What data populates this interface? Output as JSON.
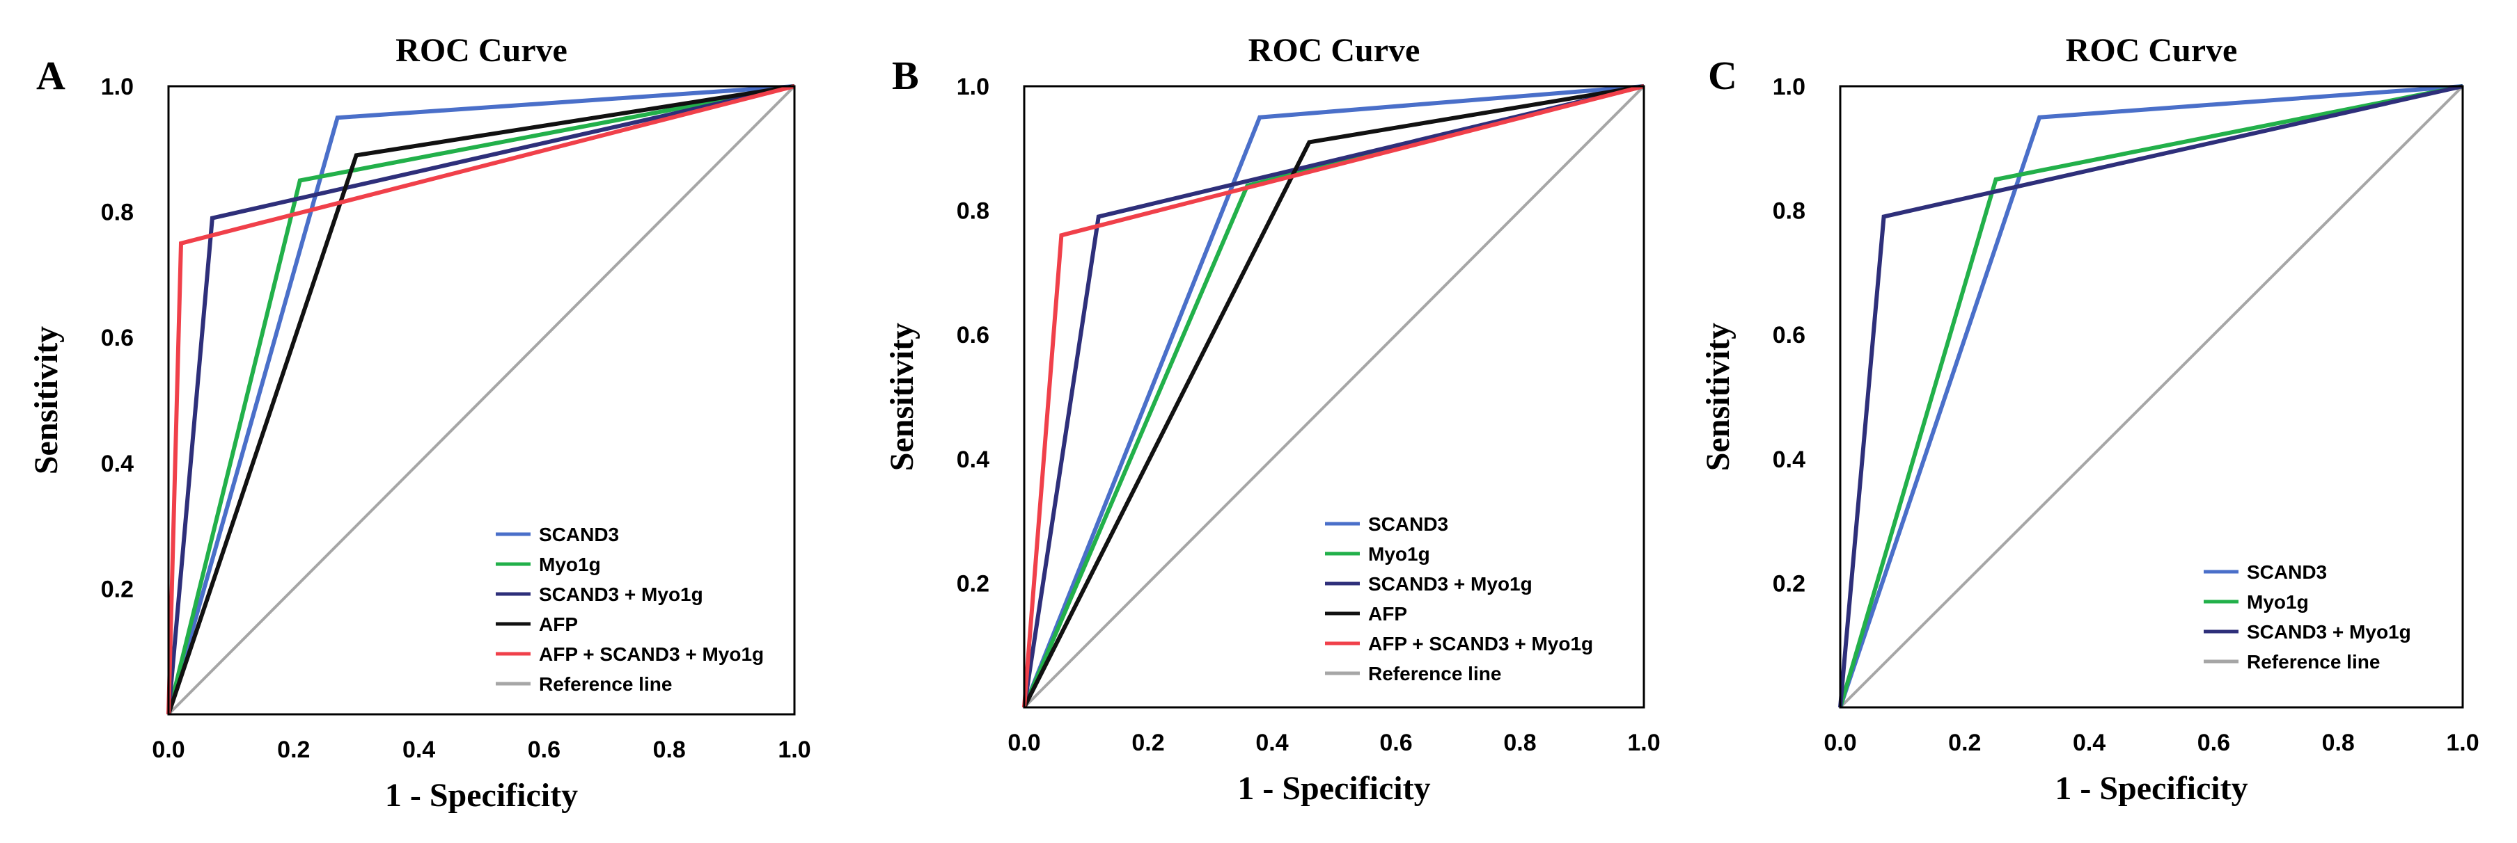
{
  "chart_data": [
    {
      "panel": "A",
      "type": "line",
      "title": "ROC Curve",
      "xlabel": "1 - Specificity",
      "ylabel": "Sensitivity",
      "xlim": [
        0,
        1
      ],
      "ylim": [
        0,
        1
      ],
      "x_ticks": [
        "0.0",
        "0.2",
        "0.4",
        "0.6",
        "0.8",
        "1.0"
      ],
      "y_ticks": [
        "0.2",
        "0.4",
        "0.6",
        "0.8",
        "1.0"
      ],
      "legend_position": "bottom-right",
      "series": [
        {
          "name": "SCAND3",
          "color": "#4a6fc9",
          "x": [
            0,
            0.27,
            1
          ],
          "y": [
            0,
            0.95,
            1
          ]
        },
        {
          "name": "Myo1g",
          "color": "#22b04a",
          "x": [
            0,
            0.21,
            1
          ],
          "y": [
            0,
            0.85,
            1
          ]
        },
        {
          "name": "SCAND3 + Myo1g",
          "color": "#2e2f7a",
          "x": [
            0,
            0.07,
            1
          ],
          "y": [
            0,
            0.79,
            1
          ]
        },
        {
          "name": "AFP",
          "color": "#111111",
          "x": [
            0,
            0.3,
            1
          ],
          "y": [
            0,
            0.89,
            1
          ]
        },
        {
          "name": "AFP + SCAND3 + Myo1g",
          "color": "#f0404a",
          "x": [
            0,
            0.02,
            1
          ],
          "y": [
            0,
            0.75,
            1
          ]
        },
        {
          "name": "Reference line",
          "color": "#a6a6a6",
          "x": [
            0,
            1
          ],
          "y": [
            0,
            1
          ]
        }
      ]
    },
    {
      "panel": "B",
      "type": "line",
      "title": "ROC Curve",
      "xlabel": "1 - Specificity",
      "ylabel": "Sensitivity",
      "xlim": [
        0,
        1
      ],
      "ylim": [
        0,
        1
      ],
      "x_ticks": [
        "0.0",
        "0.2",
        "0.4",
        "0.6",
        "0.8",
        "1.0"
      ],
      "y_ticks": [
        "0.2",
        "0.4",
        "0.6",
        "0.8",
        "1.0"
      ],
      "legend_position": "bottom-right",
      "series": [
        {
          "name": "SCAND3",
          "color": "#4a6fc9",
          "x": [
            0,
            0.38,
            1
          ],
          "y": [
            0,
            0.95,
            1
          ]
        },
        {
          "name": "Myo1g",
          "color": "#22b04a",
          "x": [
            0,
            0.36,
            1
          ],
          "y": [
            0,
            0.84,
            1
          ]
        },
        {
          "name": "SCAND3 + Myo1g",
          "color": "#2e2f7a",
          "x": [
            0,
            0.12,
            1
          ],
          "y": [
            0,
            0.79,
            1
          ]
        },
        {
          "name": "AFP",
          "color": "#111111",
          "x": [
            0,
            0.46,
            1
          ],
          "y": [
            0,
            0.91,
            1
          ]
        },
        {
          "name": "AFP + SCAND3 + Myo1g",
          "color": "#f0404a",
          "x": [
            0,
            0.06,
            1
          ],
          "y": [
            0,
            0.76,
            1
          ]
        },
        {
          "name": "Reference line",
          "color": "#a6a6a6",
          "x": [
            0,
            1
          ],
          "y": [
            0,
            1
          ]
        }
      ]
    },
    {
      "panel": "C",
      "type": "line",
      "title": "ROC Curve",
      "xlabel": "1 - Specificity",
      "ylabel": "Sensitivity",
      "xlim": [
        0,
        1
      ],
      "ylim": [
        0,
        1
      ],
      "x_ticks": [
        "0.0",
        "0.2",
        "0.4",
        "0.6",
        "0.8",
        "1.0"
      ],
      "y_ticks": [
        "0.2",
        "0.4",
        "0.6",
        "0.8",
        "1.0"
      ],
      "legend_position": "bottom-right",
      "series": [
        {
          "name": "SCAND3",
          "color": "#4a6fc9",
          "x": [
            0,
            0.32,
            1
          ],
          "y": [
            0,
            0.95,
            1
          ]
        },
        {
          "name": "Myo1g",
          "color": "#22b04a",
          "x": [
            0,
            0.25,
            1
          ],
          "y": [
            0,
            0.85,
            1
          ]
        },
        {
          "name": "SCAND3 + Myo1g",
          "color": "#2e2f7a",
          "x": [
            0,
            0.07,
            1
          ],
          "y": [
            0,
            0.79,
            1
          ]
        },
        {
          "name": "Reference line",
          "color": "#a6a6a6",
          "x": [
            0,
            1
          ],
          "y": [
            0,
            1
          ]
        }
      ]
    }
  ]
}
